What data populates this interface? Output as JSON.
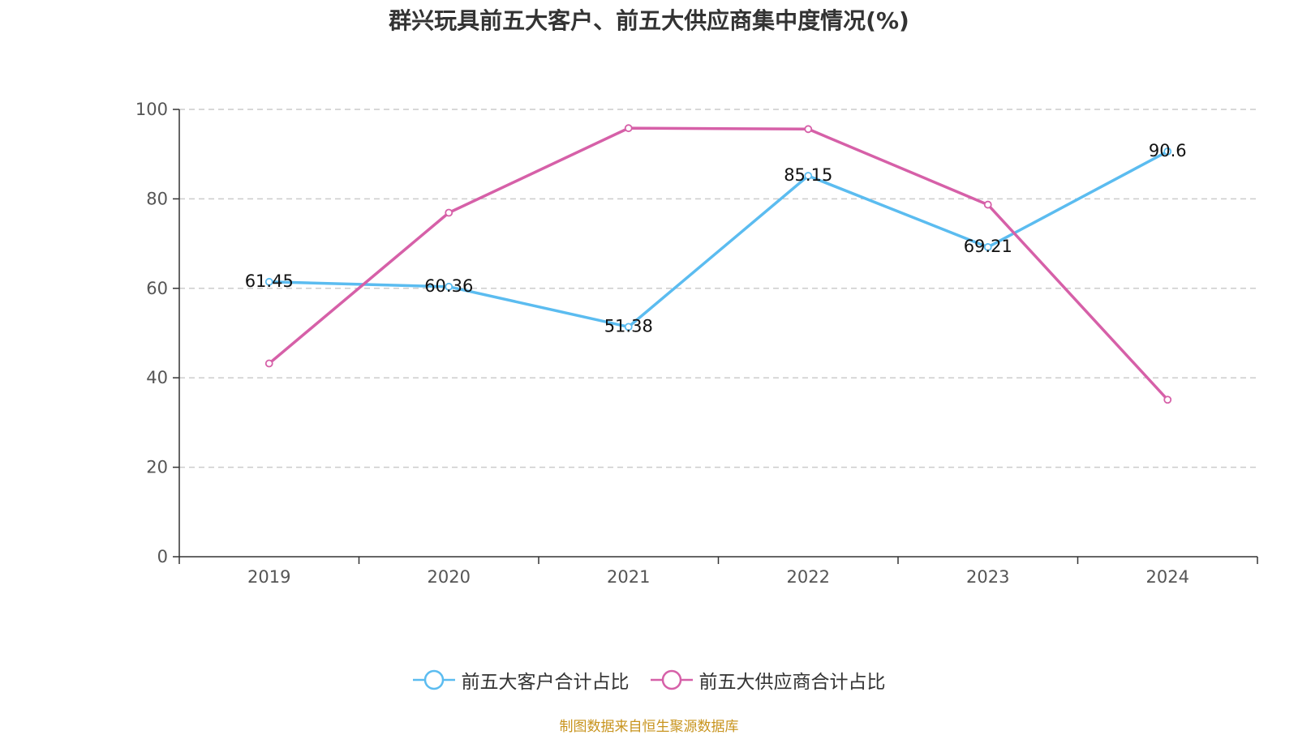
{
  "chart_data": {
    "type": "line",
    "title": "群兴玩具前五大客户、前五大供应商集中度情况(%)",
    "categories": [
      "2019",
      "2020",
      "2021",
      "2022",
      "2023",
      "2024"
    ],
    "series": [
      {
        "name": "前五大客户合计占比",
        "color": "#5bbcf0",
        "values": [
          61.45,
          60.36,
          51.38,
          85.15,
          69.21,
          90.6
        ],
        "labels": [
          "61.45",
          "60.36",
          "51.38",
          "85.15",
          "69.21",
          "90.6"
        ],
        "show_labels": true
      },
      {
        "name": "前五大供应商合计占比",
        "color": "#d660a8",
        "values": [
          43.2,
          76.9,
          95.8,
          95.6,
          78.7,
          35.1
        ],
        "show_labels": false
      }
    ],
    "ylim": [
      0,
      100
    ],
    "yticks": [
      "0",
      "20",
      "40",
      "60",
      "80",
      "100"
    ],
    "grid": "horizontal dashed",
    "legend_position": "bottom-center"
  },
  "footer": {
    "source": "制图数据来自恒生聚源数据库"
  }
}
